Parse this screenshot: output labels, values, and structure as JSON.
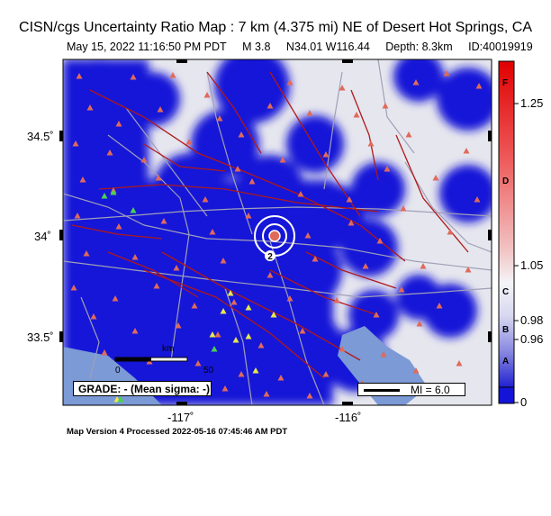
{
  "header": {
    "title": "CISN/cgs Uncertainty Ratio Map : 7 km (4.375 mi) NE of Desert Hot Springs, CA",
    "date_time": "May 15, 2022 11:16:50 PM PDT",
    "magnitude": "M 3.8",
    "location": "N34.01 W116.44",
    "depth": "Depth: 8.3km",
    "event_id": "ID:40019919"
  },
  "axes": {
    "lat_labels": [
      "34.5˚",
      "34˚",
      "33.5˚"
    ],
    "lon_labels": [
      "-117˚",
      "-116˚"
    ]
  },
  "legend": {
    "grade": "GRADE: - (Mean sigma: -)",
    "mi": "MI = 6.0"
  },
  "scale_bar": {
    "km_label": "km",
    "tick_0": "0",
    "tick_50": "50"
  },
  "epicenter_label": "2",
  "colorbar": {
    "values": [
      "1.25",
      "1.05",
      "0.98",
      "0.96",
      "0"
    ],
    "grades": [
      "F",
      "D",
      "C",
      "B",
      "A"
    ]
  },
  "footer": "Map Version 4 Processed 2022-05-16 07:45:46 AM PDT",
  "colors": {
    "uncertainty_low": "#1414d8",
    "background_grey": "#e6e6ee",
    "ocean": "#7b9ad6",
    "fault": "#b01818",
    "road": "#a0a0b8",
    "station": "#e06a5a",
    "intensity_station": "#e8e84a"
  }
}
